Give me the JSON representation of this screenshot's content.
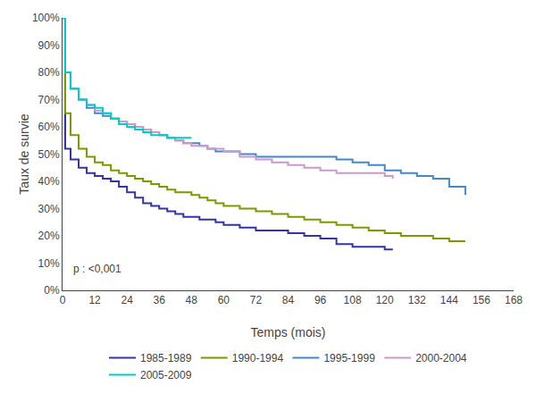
{
  "chart_data": {
    "type": "line",
    "line_style": "step",
    "xlabel": "Temps (mois)",
    "ylabel": "Taux de survie",
    "annotation": "p : <0,001",
    "xlim": [
      0,
      168
    ],
    "ylim": [
      0,
      1.0
    ],
    "xticks": [
      0,
      12,
      24,
      36,
      48,
      60,
      72,
      84,
      96,
      108,
      120,
      132,
      144,
      156,
      168
    ],
    "yticks": [
      {
        "value": 0.0,
        "label": "0%"
      },
      {
        "value": 0.1,
        "label": "10%"
      },
      {
        "value": 0.2,
        "label": "20%"
      },
      {
        "value": 0.3,
        "label": "30%"
      },
      {
        "value": 0.4,
        "label": "40%"
      },
      {
        "value": 0.5,
        "label": "50%"
      },
      {
        "value": 0.6,
        "label": "60%"
      },
      {
        "value": 0.7,
        "label": "70%"
      },
      {
        "value": 0.8,
        "label": "80%"
      },
      {
        "value": 0.9,
        "label": "90%"
      },
      {
        "value": 1.0,
        "label": "100%"
      }
    ],
    "grid": false,
    "legend": "bottom",
    "series": [
      {
        "name": "1985-1989",
        "color": "#3333aa",
        "x": [
          0,
          1,
          3,
          6,
          9,
          12,
          15,
          18,
          21,
          24,
          27,
          30,
          33,
          36,
          39,
          42,
          45,
          48,
          51,
          54,
          57,
          60,
          63,
          66,
          69,
          72,
          78,
          84,
          90,
          96,
          102,
          108,
          114,
          120,
          123
        ],
        "values": [
          1.0,
          0.52,
          0.48,
          0.45,
          0.43,
          0.42,
          0.41,
          0.4,
          0.38,
          0.36,
          0.34,
          0.32,
          0.31,
          0.3,
          0.29,
          0.28,
          0.27,
          0.27,
          0.26,
          0.26,
          0.25,
          0.24,
          0.24,
          0.23,
          0.23,
          0.22,
          0.22,
          0.21,
          0.2,
          0.19,
          0.17,
          0.16,
          0.16,
          0.15,
          0.15
        ]
      },
      {
        "name": "1990-1994",
        "color": "#7a9a00",
        "x": [
          0,
          1,
          3,
          6,
          9,
          12,
          15,
          18,
          21,
          24,
          27,
          30,
          33,
          36,
          39,
          42,
          45,
          48,
          51,
          54,
          57,
          60,
          63,
          66,
          69,
          72,
          78,
          84,
          90,
          96,
          102,
          108,
          114,
          120,
          126,
          132,
          138,
          144,
          150
        ],
        "values": [
          1.0,
          0.65,
          0.57,
          0.52,
          0.49,
          0.47,
          0.46,
          0.44,
          0.43,
          0.42,
          0.41,
          0.4,
          0.39,
          0.38,
          0.37,
          0.36,
          0.36,
          0.35,
          0.34,
          0.33,
          0.32,
          0.31,
          0.31,
          0.3,
          0.3,
          0.29,
          0.28,
          0.27,
          0.26,
          0.25,
          0.24,
          0.23,
          0.22,
          0.21,
          0.2,
          0.2,
          0.19,
          0.18,
          0.18
        ]
      },
      {
        "name": "1995-1999",
        "color": "#4488cc",
        "x": [
          0,
          1,
          3,
          6,
          9,
          12,
          15,
          18,
          21,
          24,
          27,
          30,
          33,
          36,
          39,
          42,
          45,
          48,
          51,
          54,
          57,
          60,
          66,
          72,
          78,
          84,
          90,
          96,
          102,
          108,
          114,
          120,
          126,
          132,
          138,
          144,
          150
        ],
        "values": [
          1.0,
          0.8,
          0.74,
          0.7,
          0.67,
          0.65,
          0.64,
          0.63,
          0.62,
          0.61,
          0.6,
          0.59,
          0.58,
          0.57,
          0.56,
          0.55,
          0.54,
          0.54,
          0.53,
          0.52,
          0.51,
          0.51,
          0.5,
          0.49,
          0.49,
          0.49,
          0.49,
          0.49,
          0.48,
          0.47,
          0.46,
          0.44,
          0.43,
          0.42,
          0.41,
          0.38,
          0.35
        ]
      },
      {
        "name": "2000-2004",
        "color": "#cc99cc",
        "x": [
          0,
          1,
          3,
          6,
          9,
          12,
          15,
          18,
          21,
          24,
          27,
          30,
          33,
          36,
          39,
          42,
          45,
          48,
          54,
          60,
          66,
          72,
          78,
          84,
          90,
          96,
          102,
          108,
          114,
          120,
          123
        ],
        "values": [
          1.0,
          0.8,
          0.74,
          0.7,
          0.68,
          0.66,
          0.65,
          0.63,
          0.62,
          0.61,
          0.6,
          0.59,
          0.58,
          0.57,
          0.56,
          0.55,
          0.54,
          0.53,
          0.52,
          0.51,
          0.49,
          0.48,
          0.47,
          0.46,
          0.45,
          0.44,
          0.43,
          0.43,
          0.43,
          0.42,
          0.41
        ]
      },
      {
        "name": "2005-2009",
        "color": "#00cccc",
        "x": [
          0,
          1,
          3,
          6,
          9,
          12,
          15,
          18,
          21,
          24,
          27,
          30,
          33,
          36,
          39,
          42,
          45,
          48
        ],
        "values": [
          1.0,
          0.8,
          0.74,
          0.7,
          0.68,
          0.67,
          0.65,
          0.63,
          0.61,
          0.6,
          0.59,
          0.58,
          0.57,
          0.57,
          0.56,
          0.56,
          0.56,
          0.56
        ]
      }
    ]
  }
}
